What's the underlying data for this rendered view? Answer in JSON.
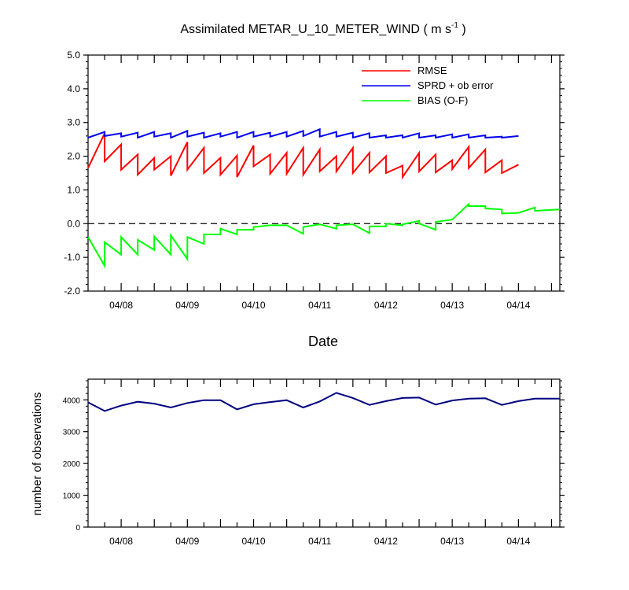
{
  "chart_data": [
    {
      "type": "line",
      "title": "Assimilated METAR_U_10_METER_WIND",
      "title_units_base": "( m s",
      "title_units_sup": "-1",
      "title_units_close": " )",
      "xlabel": "Date",
      "ylabel": "",
      "x_tick_labels": [
        "04/08",
        "04/09",
        "04/10",
        "04/11",
        "04/12",
        "04/13",
        "04/14"
      ],
      "x_tick_label_positions": [
        1,
        3,
        5,
        7,
        9,
        11,
        13
      ],
      "xlim": [
        0,
        14.25
      ],
      "ylim": [
        -2.0,
        5.0
      ],
      "y_tick_values": [
        -2,
        -1,
        0,
        1,
        2,
        3,
        4,
        5
      ],
      "y_tick_labels": [
        "-2.0",
        "-1.0",
        "0.0",
        "1.0",
        "2.0",
        "3.0",
        "4.0",
        "5.0"
      ],
      "reference_line": {
        "y": 0,
        "style": "dashed",
        "color": "#000000"
      },
      "legend_position": "top-right",
      "series": [
        {
          "name": "RMSE",
          "color": "#ff0000",
          "points": [
            [
              0,
              1.65
            ],
            [
              0.5,
              2.68
            ],
            [
              0.5,
              1.85
            ],
            [
              1,
              2.35
            ],
            [
              1,
              1.6
            ],
            [
              1.5,
              2.05
            ],
            [
              1.5,
              1.45
            ],
            [
              2,
              1.95
            ],
            [
              2,
              1.6
            ],
            [
              2.5,
              2.0
            ],
            [
              2.5,
              1.42
            ],
            [
              3,
              2.42
            ],
            [
              3,
              1.6
            ],
            [
              3.5,
              2.25
            ],
            [
              3.5,
              1.5
            ],
            [
              4,
              1.95
            ],
            [
              4,
              1.45
            ],
            [
              4.5,
              2.02
            ],
            [
              4.5,
              1.38
            ],
            [
              5,
              2.32
            ],
            [
              5,
              1.7
            ],
            [
              5.5,
              2.05
            ],
            [
              5.5,
              1.48
            ],
            [
              6,
              2.1
            ],
            [
              6,
              1.48
            ],
            [
              6.5,
              2.25
            ],
            [
              6.5,
              1.45
            ],
            [
              7,
              2.2
            ],
            [
              7,
              1.55
            ],
            [
              7.5,
              2.0
            ],
            [
              7.5,
              1.55
            ],
            [
              8,
              2.25
            ],
            [
              8,
              1.5
            ],
            [
              8.5,
              2.1
            ],
            [
              8.5,
              1.52
            ],
            [
              9,
              2.0
            ],
            [
              9,
              1.5
            ],
            [
              9.5,
              1.72
            ],
            [
              9.5,
              1.38
            ],
            [
              10,
              2.1
            ],
            [
              10,
              1.55
            ],
            [
              10.5,
              2.05
            ],
            [
              10.5,
              1.52
            ],
            [
              11,
              1.88
            ],
            [
              11,
              1.62
            ],
            [
              11.5,
              2.28
            ],
            [
              11.5,
              1.65
            ],
            [
              12,
              2.2
            ],
            [
              12,
              1.52
            ],
            [
              12.5,
              1.88
            ],
            [
              12.5,
              1.5
            ],
            [
              13,
              1.75
            ]
          ]
        },
        {
          "name": "SPRD + ob error",
          "color": "#0000ee",
          "points": [
            [
              0,
              2.55
            ],
            [
              0.5,
              2.72
            ],
            [
              0.5,
              2.6
            ],
            [
              1,
              2.68
            ],
            [
              1,
              2.58
            ],
            [
              1.5,
              2.7
            ],
            [
              1.5,
              2.55
            ],
            [
              2,
              2.72
            ],
            [
              2,
              2.58
            ],
            [
              2.5,
              2.68
            ],
            [
              2.5,
              2.55
            ],
            [
              3,
              2.75
            ],
            [
              3,
              2.58
            ],
            [
              3.5,
              2.7
            ],
            [
              3.5,
              2.55
            ],
            [
              4,
              2.68
            ],
            [
              4,
              2.58
            ],
            [
              4.5,
              2.72
            ],
            [
              4.5,
              2.55
            ],
            [
              5,
              2.72
            ],
            [
              5,
              2.58
            ],
            [
              5.5,
              2.7
            ],
            [
              5.5,
              2.58
            ],
            [
              6,
              2.72
            ],
            [
              6,
              2.58
            ],
            [
              6.5,
              2.75
            ],
            [
              6.5,
              2.6
            ],
            [
              7,
              2.8
            ],
            [
              7,
              2.58
            ],
            [
              7.5,
              2.72
            ],
            [
              7.5,
              2.58
            ],
            [
              8,
              2.7
            ],
            [
              8,
              2.55
            ],
            [
              8.5,
              2.68
            ],
            [
              8.5,
              2.55
            ],
            [
              9,
              2.62
            ],
            [
              9,
              2.55
            ],
            [
              9.5,
              2.62
            ],
            [
              9.5,
              2.55
            ],
            [
              10,
              2.68
            ],
            [
              10,
              2.55
            ],
            [
              10.5,
              2.62
            ],
            [
              10.5,
              2.55
            ],
            [
              11,
              2.65
            ],
            [
              11,
              2.55
            ],
            [
              11.5,
              2.65
            ],
            [
              11.5,
              2.55
            ],
            [
              12,
              2.62
            ],
            [
              12,
              2.55
            ],
            [
              12.5,
              2.58
            ],
            [
              12.5,
              2.55
            ],
            [
              13,
              2.6
            ]
          ]
        },
        {
          "name": "BIAS (O-F)",
          "color": "#00ff00",
          "points": [
            [
              0,
              -0.4
            ],
            [
              0.5,
              -1.25
            ],
            [
              0.5,
              -0.55
            ],
            [
              1,
              -0.92
            ],
            [
              1,
              -0.4
            ],
            [
              1.5,
              -0.92
            ],
            [
              1.5,
              -0.48
            ],
            [
              2,
              -0.78
            ],
            [
              2,
              -0.38
            ],
            [
              2.5,
              -0.92
            ],
            [
              2.5,
              -0.35
            ],
            [
              3,
              -1.05
            ],
            [
              3,
              -0.4
            ],
            [
              3.5,
              -0.6
            ],
            [
              3.5,
              -0.32
            ],
            [
              4,
              -0.32
            ],
            [
              4,
              -0.15
            ],
            [
              4.5,
              -0.32
            ],
            [
              4.5,
              -0.18
            ],
            [
              5,
              -0.18
            ],
            [
              5,
              -0.1
            ],
            [
              5.5,
              -0.05
            ],
            [
              5.5,
              -0.05
            ],
            [
              6,
              -0.05
            ],
            [
              6,
              -0.05
            ],
            [
              6.5,
              -0.3
            ],
            [
              6.5,
              -0.1
            ],
            [
              7,
              -0.02
            ],
            [
              7,
              -0.02
            ],
            [
              7.5,
              -0.15
            ],
            [
              7.5,
              -0.05
            ],
            [
              8,
              -0.02
            ],
            [
              8,
              -0.02
            ],
            [
              8.5,
              -0.28
            ],
            [
              8.5,
              -0.08
            ],
            [
              9,
              -0.08
            ],
            [
              9,
              0.0
            ],
            [
              9.5,
              -0.05
            ],
            [
              9.5,
              -0.02
            ],
            [
              10,
              0.08
            ],
            [
              10,
              0.0
            ],
            [
              10.5,
              -0.18
            ],
            [
              10.5,
              0.05
            ],
            [
              11,
              0.12
            ],
            [
              11,
              0.12
            ],
            [
              11.5,
              0.58
            ],
            [
              11.5,
              0.52
            ],
            [
              12,
              0.52
            ],
            [
              12,
              0.45
            ],
            [
              12.5,
              0.42
            ],
            [
              12.5,
              0.3
            ],
            [
              13,
              0.32
            ],
            [
              13,
              0.32
            ],
            [
              13.5,
              0.48
            ],
            [
              13.5,
              0.38
            ],
            [
              14.25,
              0.42
            ]
          ]
        }
      ]
    },
    {
      "type": "line",
      "title": "",
      "xlabel": "",
      "ylabel": "number of observations",
      "x_tick_labels": [
        "04/08",
        "04/09",
        "04/10",
        "04/11",
        "04/12",
        "04/13",
        "04/14"
      ],
      "x_tick_label_positions": [
        1,
        3,
        5,
        7,
        9,
        11,
        13
      ],
      "xlim": [
        0,
        14.25
      ],
      "ylim": [
        0,
        4650
      ],
      "y_tick_values": [
        0,
        1000,
        2000,
        3000,
        4000
      ],
      "y_tick_labels": [
        "0",
        "1000",
        "2000",
        "3000",
        "4000"
      ],
      "series": [
        {
          "name": "",
          "color": "#000080",
          "points": [
            [
              0,
              3920
            ],
            [
              0.5,
              3650
            ],
            [
              1,
              3820
            ],
            [
              1.5,
              3940
            ],
            [
              2,
              3880
            ],
            [
              2.5,
              3760
            ],
            [
              3,
              3900
            ],
            [
              3.5,
              3990
            ],
            [
              4,
              3990
            ],
            [
              4.5,
              3700
            ],
            [
              5,
              3860
            ],
            [
              5.5,
              3930
            ],
            [
              6,
              3990
            ],
            [
              6.5,
              3760
            ],
            [
              7,
              3950
            ],
            [
              7.5,
              4220
            ],
            [
              8,
              4060
            ],
            [
              8.5,
              3840
            ],
            [
              9,
              3960
            ],
            [
              9.5,
              4060
            ],
            [
              10,
              4070
            ],
            [
              10.5,
              3850
            ],
            [
              11,
              3980
            ],
            [
              11.5,
              4040
            ],
            [
              12,
              4050
            ],
            [
              12.5,
              3840
            ],
            [
              13,
              3960
            ],
            [
              13.5,
              4040
            ],
            [
              14.25,
              4040
            ]
          ]
        }
      ]
    }
  ]
}
